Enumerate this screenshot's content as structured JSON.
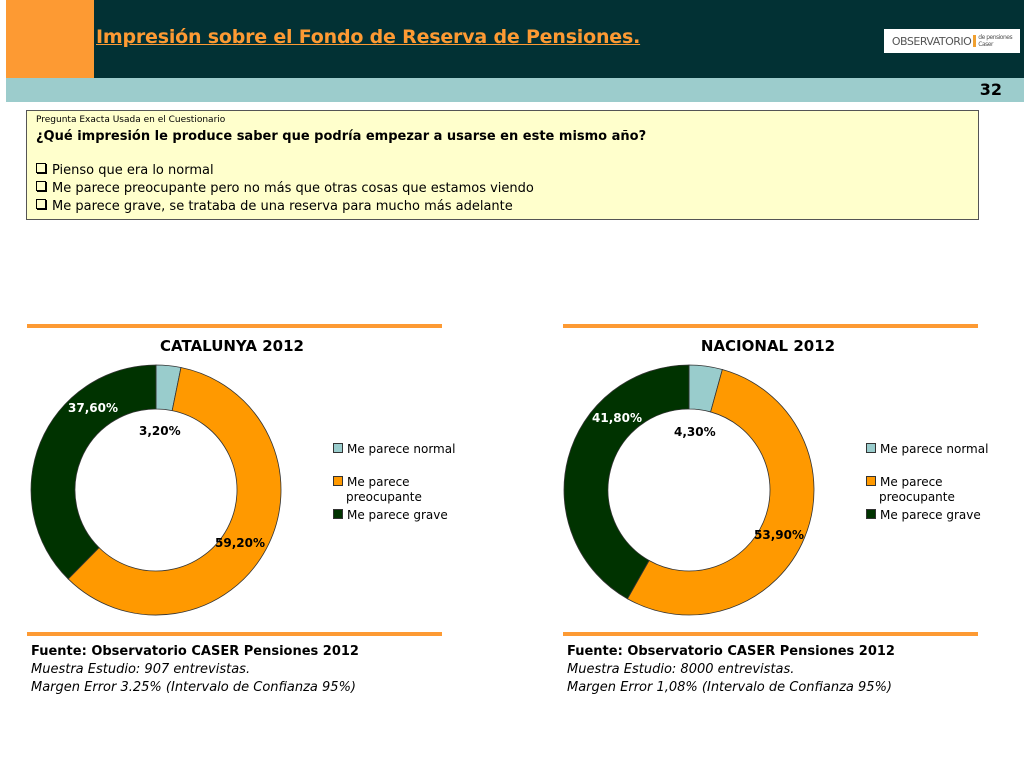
{
  "header": {
    "title": "Impresión sobre el Fondo de Reserva de Pensiones.",
    "logo": "OBSERVATORIO",
    "page_number": "32"
  },
  "question": {
    "caption": "Pregunta Exacta Usada en el Cuestionario",
    "text": "¿Qué impresión le produce saber que podría empezar a usarse en este mismo año?",
    "options": [
      "Pienso que era lo normal",
      "Me parece preocupante pero no más que otras cosas que estamos viendo",
      "Me parece grave, se trataba de una reserva para mucho más adelante"
    ]
  },
  "colors": {
    "normal": "#99cccc",
    "preocupante": "#ff9900",
    "grave": "#003300"
  },
  "chart_data": [
    {
      "type": "pie",
      "title": "CATALUNYA 2012",
      "categories": [
        "Me parece normal",
        "Me parece preocupante",
        "Me parece grave"
      ],
      "values": [
        3.2,
        59.2,
        37.6
      ],
      "labels": [
        "3,20%",
        "59,20%",
        "37,60%"
      ],
      "legend": "right"
    },
    {
      "type": "pie",
      "title": "NACIONAL 2012",
      "categories": [
        "Me parece normal",
        "Me parece preocupante",
        "Me parece grave"
      ],
      "values": [
        4.3,
        53.9,
        41.8
      ],
      "labels": [
        "4,30%",
        "53,90%",
        "41,80%"
      ],
      "legend": "right"
    }
  ],
  "legend": {
    "normal": "Me parece normal",
    "preocupante1": "Me parece",
    "preocupante2": "preocupante",
    "grave": "Me parece grave"
  },
  "sources": [
    {
      "fuente": "Fuente: Observatorio CASER Pensiones 2012",
      "muestra": "Muestra Estudio: 907 entrevistas.",
      "margen": "Margen Error 3.25% (Intervalo de Confianza 95%)"
    },
    {
      "fuente": "Fuente: Observatorio CASER Pensiones 2012",
      "muestra": "Muestra Estudio: 8000 entrevistas.",
      "margen": "Margen Error 1,08% (Intervalo de Confianza 95%)"
    }
  ]
}
